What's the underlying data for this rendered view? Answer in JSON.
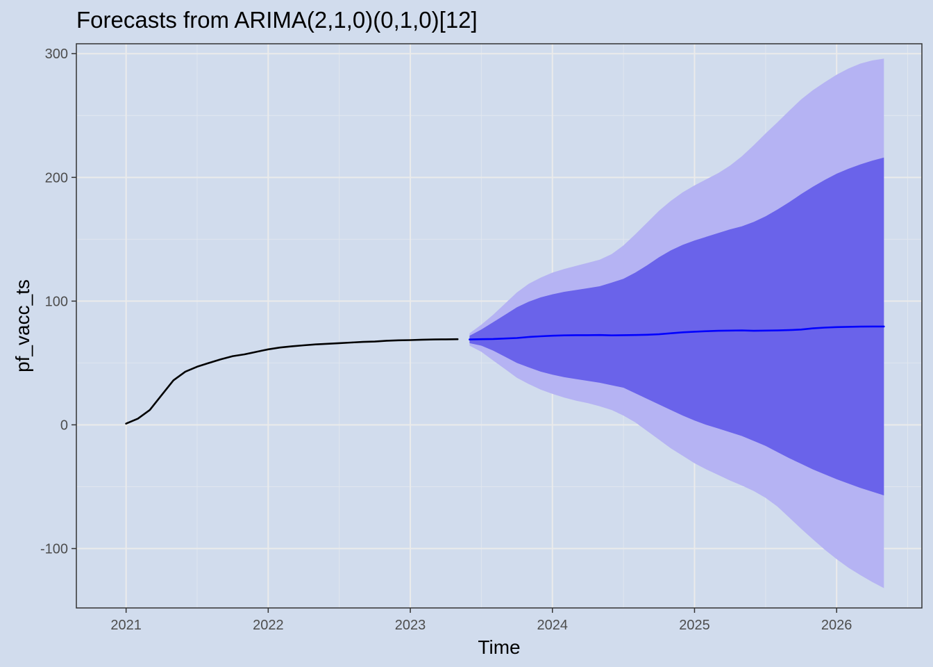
{
  "chart_data": {
    "type": "line",
    "title": "Forecasts from ARIMA(2,1,0)(0,1,0)[12]",
    "xlabel": "Time",
    "ylabel": "pf_vacc_ts",
    "xlim": [
      2020.65,
      2026.6
    ],
    "ylim": [
      -148,
      308
    ],
    "x_ticks": [
      2021,
      2022,
      2023,
      2024,
      2025,
      2026
    ],
    "y_ticks": [
      -100,
      0,
      100,
      200,
      300
    ],
    "grid": true,
    "colors": {
      "background": "#d1dced",
      "observed": "#000000",
      "forecast": "#0000ff",
      "band_80": "#6a63ea",
      "band_95": "#b5b3f3"
    },
    "series": [
      {
        "type": "observed",
        "x": [
          2021.0,
          2021.083,
          2021.167,
          2021.25,
          2021.333,
          2021.417,
          2021.5,
          2021.583,
          2021.667,
          2021.75,
          2021.833,
          2021.917,
          2022.0,
          2022.083,
          2022.167,
          2022.25,
          2022.333,
          2022.417,
          2022.5,
          2022.583,
          2022.667,
          2022.75,
          2022.833,
          2022.917,
          2023.0,
          2023.083,
          2023.167,
          2023.25,
          2023.333
        ],
        "values": [
          1,
          5,
          12,
          24,
          36,
          43,
          47,
          50,
          53,
          55.5,
          57,
          59,
          61,
          62.5,
          63.5,
          64.3,
          65,
          65.5,
          66,
          66.5,
          67,
          67.3,
          68,
          68.3,
          68.5,
          68.8,
          69,
          69.1,
          69.2
        ]
      },
      {
        "type": "forecast",
        "x": [
          2023.417,
          2023.5,
          2023.583,
          2023.667,
          2023.75,
          2023.833,
          2023.917,
          2024.0,
          2024.083,
          2024.167,
          2024.25,
          2024.333,
          2024.417,
          2024.5,
          2024.583,
          2024.667,
          2024.75,
          2024.833,
          2024.917,
          2025.0,
          2025.083,
          2025.167,
          2025.25,
          2025.333,
          2025.417,
          2025.5,
          2025.583,
          2025.667,
          2025.75,
          2025.833,
          2025.917,
          2026.0,
          2026.083,
          2026.167,
          2026.25,
          2026.333
        ],
        "values": [
          69,
          69.2,
          69.4,
          69.8,
          70.2,
          71,
          71.6,
          72,
          72.3,
          72.5,
          72.5,
          72.6,
          72.3,
          72.5,
          72.6,
          72.8,
          73.2,
          74,
          74.8,
          75.3,
          75.7,
          76,
          76.2,
          76.3,
          76,
          76.2,
          76.3,
          76.6,
          77,
          78,
          78.6,
          79,
          79.2,
          79.4,
          79.5,
          79.5
        ],
        "lo80": [
          66,
          64,
          60,
          55,
          50,
          46.5,
          43,
          40.5,
          38.5,
          37,
          35.5,
          34,
          32,
          30,
          25.5,
          21,
          16.5,
          12,
          7.5,
          3.5,
          0,
          -3,
          -6,
          -9,
          -13,
          -17,
          -22,
          -27,
          -31.5,
          -36,
          -40,
          -44,
          -47.5,
          -51,
          -54,
          -57
        ],
        "hi80": [
          72,
          77,
          83,
          89,
          95,
          99.5,
          103,
          105.5,
          107.5,
          109,
          110.5,
          112,
          115,
          118,
          123,
          129,
          135.5,
          141,
          145.5,
          149,
          152,
          155,
          158,
          160.5,
          164,
          168.5,
          174,
          180,
          186.5,
          192.5,
          198,
          203,
          207,
          210.5,
          213.5,
          216
        ],
        "lo95": [
          64,
          59,
          52,
          45,
          38,
          33,
          28.5,
          25,
          22,
          19.5,
          17.5,
          15,
          12,
          7.5,
          2,
          -5,
          -12,
          -19,
          -25,
          -31,
          -36,
          -40.5,
          -45,
          -49,
          -53.5,
          -59,
          -66,
          -75,
          -84,
          -92.5,
          -101,
          -108.5,
          -115.5,
          -121.5,
          -127,
          -132
        ],
        "hi95": [
          74,
          81,
          89,
          98,
          107,
          114,
          119,
          123,
          126,
          128.5,
          131,
          133.5,
          138,
          145,
          154,
          163.5,
          173,
          181,
          188,
          193.5,
          198.5,
          203.5,
          209.5,
          217,
          226,
          235.5,
          244.5,
          254,
          263,
          270.5,
          277,
          283,
          288,
          292,
          294.5,
          296
        ]
      }
    ]
  }
}
